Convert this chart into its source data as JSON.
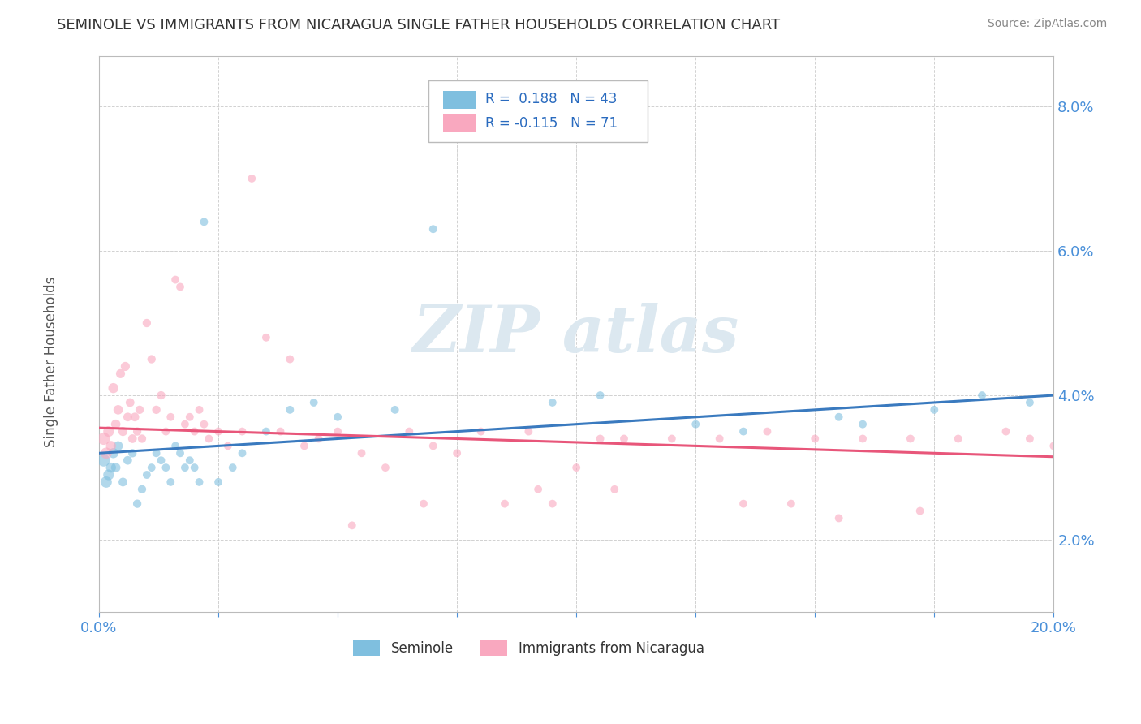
{
  "title": "SEMINOLE VS IMMIGRANTS FROM NICARAGUA SINGLE FATHER HOUSEHOLDS CORRELATION CHART",
  "source": "Source: ZipAtlas.com",
  "ylabel": "Single Father Households",
  "xlim": [
    0.0,
    20.0
  ],
  "ylim": [
    1.0,
    8.7
  ],
  "yticks": [
    2.0,
    4.0,
    6.0,
    8.0
  ],
  "xticks": [
    0.0,
    2.5,
    5.0,
    7.5,
    10.0,
    12.5,
    15.0,
    17.5,
    20.0
  ],
  "legend1_r": "R =  0.188",
  "legend1_n": "N = 43",
  "legend2_r": "R = -0.115",
  "legend2_n": "N = 71",
  "seminole_color": "#7fbfdf",
  "nicaragua_color": "#f9a8bf",
  "trendline1_color": "#3a7abf",
  "trendline2_color": "#e8567a",
  "background_color": "#ffffff",
  "grid_color": "#cccccc",
  "watermark_color": "#dce8f0",
  "trendline1_start": 3.2,
  "trendline1_end": 4.0,
  "trendline2_start": 3.55,
  "trendline2_end": 3.15,
  "seminole_data_x": [
    0.1,
    0.15,
    0.2,
    0.25,
    0.3,
    0.35,
    0.4,
    0.5,
    0.6,
    0.7,
    0.8,
    0.9,
    1.0,
    1.1,
    1.2,
    1.3,
    1.4,
    1.5,
    1.6,
    1.7,
    1.8,
    1.9,
    2.0,
    2.1,
    2.2,
    2.5,
    2.8,
    3.0,
    3.5,
    4.0,
    4.5,
    5.0,
    6.2,
    7.0,
    9.5,
    10.5,
    12.5,
    13.5,
    15.5,
    16.0,
    17.5,
    18.5,
    19.5
  ],
  "seminole_data_y": [
    3.1,
    2.8,
    2.9,
    3.0,
    3.2,
    3.0,
    3.3,
    2.8,
    3.1,
    3.2,
    2.5,
    2.7,
    2.9,
    3.0,
    3.2,
    3.1,
    3.0,
    2.8,
    3.3,
    3.2,
    3.0,
    3.1,
    3.0,
    2.8,
    6.4,
    2.8,
    3.0,
    3.2,
    3.5,
    3.8,
    3.9,
    3.7,
    3.8,
    6.3,
    3.9,
    4.0,
    3.6,
    3.5,
    3.7,
    3.6,
    3.8,
    4.0,
    3.9
  ],
  "seminole_sizes": [
    120,
    100,
    90,
    80,
    80,
    70,
    70,
    60,
    60,
    55,
    55,
    55,
    50,
    50,
    50,
    50,
    50,
    50,
    50,
    50,
    50,
    50,
    50,
    50,
    50,
    50,
    50,
    50,
    50,
    50,
    50,
    50,
    50,
    50,
    50,
    50,
    50,
    50,
    50,
    50,
    50,
    50,
    50
  ],
  "nicaragua_data_x": [
    0.1,
    0.15,
    0.2,
    0.25,
    0.3,
    0.35,
    0.4,
    0.45,
    0.5,
    0.55,
    0.6,
    0.65,
    0.7,
    0.75,
    0.8,
    0.85,
    0.9,
    1.0,
    1.1,
    1.2,
    1.3,
    1.4,
    1.5,
    1.6,
    1.7,
    1.8,
    1.9,
    2.0,
    2.1,
    2.2,
    2.3,
    2.5,
    2.7,
    3.0,
    3.2,
    3.5,
    3.8,
    4.0,
    4.3,
    4.6,
    5.0,
    5.5,
    6.0,
    6.5,
    7.0,
    7.5,
    8.0,
    8.5,
    9.0,
    9.5,
    10.0,
    10.5,
    11.0,
    12.0,
    13.0,
    14.0,
    15.0,
    16.0,
    17.0,
    18.0,
    19.0,
    19.5,
    20.0,
    5.3,
    6.8,
    9.2,
    10.8,
    13.5,
    14.5,
    15.5,
    17.2
  ],
  "nicaragua_data_y": [
    3.4,
    3.2,
    3.5,
    3.3,
    4.1,
    3.6,
    3.8,
    4.3,
    3.5,
    4.4,
    3.7,
    3.9,
    3.4,
    3.7,
    3.5,
    3.8,
    3.4,
    5.0,
    4.5,
    3.8,
    4.0,
    3.5,
    3.7,
    5.6,
    5.5,
    3.6,
    3.7,
    3.5,
    3.8,
    3.6,
    3.4,
    3.5,
    3.3,
    3.5,
    7.0,
    4.8,
    3.5,
    4.5,
    3.3,
    3.4,
    3.5,
    3.2,
    3.0,
    3.5,
    3.3,
    3.2,
    3.5,
    2.5,
    3.5,
    2.5,
    3.0,
    3.4,
    3.4,
    3.4,
    3.4,
    3.5,
    3.4,
    3.4,
    3.4,
    3.4,
    3.5,
    3.4,
    3.3,
    2.2,
    2.5,
    2.7,
    2.7,
    2.5,
    2.5,
    2.3,
    2.4
  ],
  "nicaragua_sizes": [
    120,
    100,
    90,
    80,
    80,
    70,
    70,
    65,
    65,
    65,
    60,
    60,
    60,
    60,
    55,
    55,
    55,
    55,
    55,
    55,
    55,
    50,
    50,
    50,
    50,
    50,
    50,
    50,
    50,
    50,
    50,
    50,
    50,
    50,
    50,
    50,
    50,
    50,
    50,
    50,
    50,
    50,
    50,
    50,
    50,
    50,
    50,
    50,
    50,
    50,
    50,
    50,
    50,
    50,
    50,
    50,
    50,
    50,
    50,
    50,
    50,
    50,
    50,
    50,
    50,
    50,
    50,
    50,
    50,
    50,
    50
  ]
}
